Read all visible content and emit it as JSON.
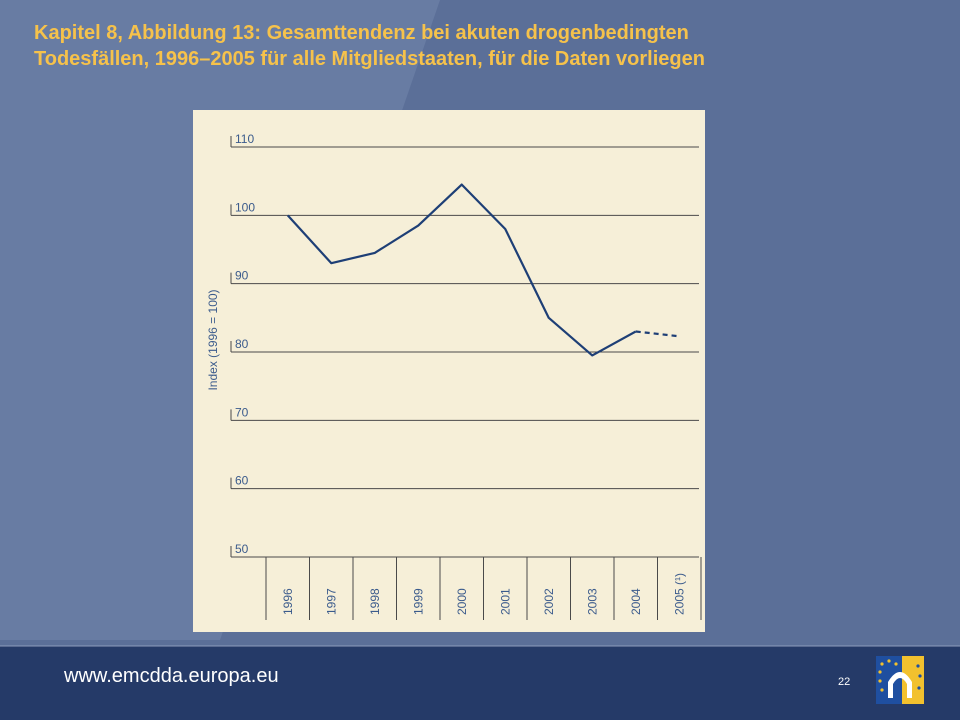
{
  "slide": {
    "title_line1": "Kapitel 8, Abbildung 13: Gesamttendenz bei akuten drogenbedingten",
    "title_line2": "Todesfällen, 1996–2005 für alle Mitgliedstaaten, für die Daten vorliegen",
    "footer_url": "www.emcdda.europa.eu",
    "page_number": "22"
  },
  "colors": {
    "background": "#5b6f98",
    "title": "#f6c24b",
    "chart_bg": "#f6efd8",
    "line": "#1e3f76",
    "grid": "#4a4a4a",
    "text": "#3b5b8c"
  },
  "chart_data": {
    "type": "line",
    "title": "",
    "xlabel": "",
    "ylabel": "Index (1996 = 100)",
    "categories": [
      "1996",
      "1997",
      "1998",
      "1999",
      "2000",
      "2001",
      "2002",
      "2003",
      "2004",
      "2005 (¹)"
    ],
    "series": [
      {
        "values": [
          100,
          93,
          94.5,
          98.5,
          104.5,
          98,
          85,
          79.5,
          83,
          82.3
        ],
        "line_style": "solid",
        "dashed_last_segment": true
      }
    ],
    "ylim": [
      50,
      110
    ],
    "yticks": [
      110,
      100,
      90,
      80,
      70,
      60,
      50
    ],
    "grid": true,
    "legend": "none"
  }
}
